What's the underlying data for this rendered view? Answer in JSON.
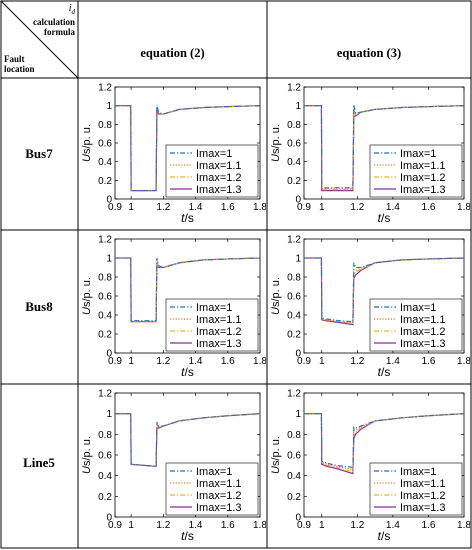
{
  "header": {
    "corner_top_symbol": "i",
    "corner_top_symbol_sub": "d",
    "corner_top_line1": "calculation",
    "corner_top_line2": "formula",
    "corner_bottom_line1": "Fault",
    "corner_bottom_line2": "location",
    "col1": "equation (2)",
    "col2": "equation (3)"
  },
  "rows": [
    "Bus7",
    "Bus8",
    "Line5"
  ],
  "colors": {
    "Imax=1": "#1f6fc0",
    "Imax=1.1": "#e87a1e",
    "Imax=1.2": "#f0b429",
    "Imax=1.3": "#8a2a9e"
  },
  "axis_text": {
    "xlabel_var": "t",
    "xlabel_unit": "/s",
    "ylabel_var": "U",
    "ylabel_unit": "s/p. u."
  },
  "chart_data": [
    {
      "type": "line",
      "row": "Bus7",
      "column": "equation (2)",
      "xlim": [
        0.9,
        1.8
      ],
      "ylim": [
        0,
        1.2
      ],
      "xticks": [
        "0.9",
        "1",
        "1.2",
        "1.4",
        "1.6",
        "1.8"
      ],
      "yticks": [
        "0",
        "0.2",
        "0.4",
        "0.6",
        "0.8",
        "1",
        "1.2"
      ],
      "xlabel": "t/s",
      "ylabel": "Us/p. u.",
      "legend_position": "lower-right",
      "series": [
        {
          "name": "Imax=1",
          "style": "dash-dot",
          "x": [
            0.9,
            0.998,
            1.0,
            1.155,
            1.16,
            1.17,
            1.2,
            1.3,
            1.45,
            1.6,
            1.8
          ],
          "y": [
            1.0,
            1.0,
            0.09,
            0.09,
            1.01,
            0.93,
            0.91,
            0.96,
            0.98,
            0.99,
            1.0
          ]
        },
        {
          "name": "Imax=1.1",
          "style": "dotted",
          "x": [
            0.9,
            0.998,
            1.0,
            1.155,
            1.16,
            1.17,
            1.2,
            1.3,
            1.45,
            1.6,
            1.8
          ],
          "y": [
            1.0,
            1.0,
            0.09,
            0.09,
            0.99,
            0.92,
            0.91,
            0.96,
            0.98,
            0.99,
            1.0
          ]
        },
        {
          "name": "Imax=1.2",
          "style": "dash-dot",
          "x": [
            0.9,
            0.998,
            1.0,
            1.155,
            1.16,
            1.17,
            1.2,
            1.3,
            1.45,
            1.6,
            1.8
          ],
          "y": [
            1.0,
            1.0,
            0.09,
            0.09,
            0.97,
            0.92,
            0.91,
            0.96,
            0.98,
            0.99,
            1.0
          ]
        },
        {
          "name": "Imax=1.3",
          "style": "solid",
          "x": [
            0.9,
            0.998,
            1.0,
            1.155,
            1.16,
            1.17,
            1.2,
            1.3,
            1.45,
            1.6,
            1.8
          ],
          "y": [
            1.0,
            1.0,
            0.09,
            0.09,
            0.95,
            0.91,
            0.91,
            0.96,
            0.98,
            0.99,
            1.0
          ]
        }
      ]
    },
    {
      "type": "line",
      "row": "Bus7",
      "column": "equation (3)",
      "xlim": [
        0.9,
        1.8
      ],
      "ylim": [
        0,
        1.2
      ],
      "xticks": [
        "0.9",
        "1",
        "1.2",
        "1.4",
        "1.6",
        "1.8"
      ],
      "yticks": [
        "0",
        "0.2",
        "0.4",
        "0.6",
        "0.8",
        "1",
        "1.2"
      ],
      "xlabel": "t/s",
      "ylabel": "Us/p. u.",
      "legend_position": "lower-right",
      "series": [
        {
          "name": "Imax=1",
          "style": "dash-dot",
          "x": [
            0.9,
            0.998,
            1.0,
            1.175,
            1.18,
            1.19,
            1.22,
            1.3,
            1.45,
            1.6,
            1.8
          ],
          "y": [
            1.0,
            1.0,
            0.12,
            0.12,
            1.01,
            0.92,
            0.93,
            0.96,
            0.98,
            0.99,
            1.0
          ]
        },
        {
          "name": "Imax=1.1",
          "style": "dotted",
          "x": [
            0.9,
            0.998,
            1.0,
            1.175,
            1.18,
            1.19,
            1.22,
            1.3,
            1.45,
            1.6,
            1.8
          ],
          "y": [
            1.0,
            1.0,
            0.11,
            0.11,
            0.96,
            0.91,
            0.93,
            0.96,
            0.98,
            0.99,
            1.0
          ]
        },
        {
          "name": "Imax=1.2",
          "style": "dash-dot",
          "x": [
            0.9,
            0.998,
            1.0,
            1.175,
            1.18,
            1.19,
            1.22,
            1.3,
            1.45,
            1.6,
            1.8
          ],
          "y": [
            1.0,
            1.0,
            0.1,
            0.1,
            0.93,
            0.9,
            0.93,
            0.96,
            0.98,
            0.99,
            1.0
          ]
        },
        {
          "name": "Imax=1.3",
          "style": "solid",
          "x": [
            0.9,
            0.998,
            1.0,
            1.175,
            1.18,
            1.19,
            1.22,
            1.3,
            1.45,
            1.6,
            1.8
          ],
          "y": [
            1.0,
            1.0,
            0.09,
            0.09,
            0.88,
            0.89,
            0.93,
            0.96,
            0.98,
            0.99,
            1.0
          ]
        }
      ]
    },
    {
      "type": "line",
      "row": "Bus8",
      "column": "equation (2)",
      "xlim": [
        0.9,
        1.8
      ],
      "ylim": [
        0,
        1.2
      ],
      "xticks": [
        "0.9",
        "1",
        "1.2",
        "1.4",
        "1.6",
        "1.8"
      ],
      "yticks": [
        "0",
        "0.2",
        "0.4",
        "0.6",
        "0.8",
        "1",
        "1.2"
      ],
      "xlabel": "t/s",
      "ylabel": "Us/p. u.",
      "legend_position": "lower-right",
      "series": [
        {
          "name": "Imax=1",
          "style": "dash-dot",
          "x": [
            0.9,
            0.998,
            1.0,
            1.155,
            1.16,
            1.17,
            1.2,
            1.3,
            1.45,
            1.6,
            1.8
          ],
          "y": [
            1.0,
            1.0,
            0.34,
            0.34,
            1.0,
            0.92,
            0.9,
            0.95,
            0.98,
            0.99,
            1.0
          ]
        },
        {
          "name": "Imax=1.1",
          "style": "dotted",
          "x": [
            0.9,
            0.998,
            1.0,
            1.155,
            1.16,
            1.17,
            1.2,
            1.3,
            1.45,
            1.6,
            1.8
          ],
          "y": [
            1.0,
            1.0,
            0.33,
            0.33,
            0.97,
            0.91,
            0.9,
            0.95,
            0.98,
            0.99,
            1.0
          ]
        },
        {
          "name": "Imax=1.2",
          "style": "dash-dot",
          "x": [
            0.9,
            0.998,
            1.0,
            1.155,
            1.16,
            1.17,
            1.2,
            1.3,
            1.45,
            1.6,
            1.8
          ],
          "y": [
            1.0,
            1.0,
            0.33,
            0.33,
            0.95,
            0.9,
            0.9,
            0.95,
            0.98,
            0.99,
            1.0
          ]
        },
        {
          "name": "Imax=1.3",
          "style": "solid",
          "x": [
            0.9,
            0.998,
            1.0,
            1.155,
            1.16,
            1.17,
            1.2,
            1.3,
            1.45,
            1.6,
            1.8
          ],
          "y": [
            1.0,
            1.0,
            0.33,
            0.33,
            0.93,
            0.9,
            0.9,
            0.95,
            0.98,
            0.99,
            1.0
          ]
        }
      ]
    },
    {
      "type": "line",
      "row": "Bus8",
      "column": "equation (3)",
      "xlim": [
        0.9,
        1.8
      ],
      "ylim": [
        0,
        1.2
      ],
      "xticks": [
        "0.9",
        "1",
        "1.2",
        "1.4",
        "1.6",
        "1.8"
      ],
      "yticks": [
        "0",
        "0.2",
        "0.4",
        "0.6",
        "0.8",
        "1",
        "1.2"
      ],
      "xlabel": "t/s",
      "ylabel": "Us/p. u.",
      "legend_position": "lower-right",
      "series": [
        {
          "name": "Imax=1",
          "style": "dash-dot",
          "x": [
            0.9,
            0.998,
            1.0,
            1.02,
            1.1,
            1.175,
            1.18,
            1.19,
            1.22,
            1.3,
            1.45,
            1.6,
            1.8
          ],
          "y": [
            1.0,
            1.0,
            0.37,
            0.36,
            0.34,
            0.33,
            0.95,
            0.9,
            0.9,
            0.95,
            0.98,
            0.99,
            1.0
          ]
        },
        {
          "name": "Imax=1.1",
          "style": "dotted",
          "x": [
            0.9,
            0.998,
            1.0,
            1.02,
            1.1,
            1.175,
            1.18,
            1.19,
            1.22,
            1.3,
            1.45,
            1.6,
            1.8
          ],
          "y": [
            1.0,
            1.0,
            0.36,
            0.35,
            0.33,
            0.32,
            0.88,
            0.87,
            0.89,
            0.95,
            0.98,
            0.99,
            1.0
          ]
        },
        {
          "name": "Imax=1.2",
          "style": "dash-dot",
          "x": [
            0.9,
            0.998,
            1.0,
            1.02,
            1.1,
            1.175,
            1.18,
            1.19,
            1.22,
            1.3,
            1.45,
            1.6,
            1.8
          ],
          "y": [
            1.0,
            1.0,
            0.36,
            0.35,
            0.33,
            0.31,
            0.83,
            0.85,
            0.88,
            0.95,
            0.98,
            0.99,
            1.0
          ]
        },
        {
          "name": "Imax=1.3",
          "style": "solid",
          "x": [
            0.9,
            0.998,
            1.0,
            1.02,
            1.1,
            1.175,
            1.18,
            1.19,
            1.22,
            1.3,
            1.45,
            1.6,
            1.8
          ],
          "y": [
            1.0,
            1.0,
            0.35,
            0.34,
            0.32,
            0.3,
            0.78,
            0.82,
            0.87,
            0.95,
            0.98,
            0.99,
            1.0
          ]
        }
      ]
    },
    {
      "type": "line",
      "row": "Line5",
      "column": "equation (2)",
      "xlim": [
        0.9,
        1.8
      ],
      "ylim": [
        0,
        1.2
      ],
      "xticks": [
        "0.9",
        "1",
        "1.2",
        "1.4",
        "1.6",
        "1.8"
      ],
      "yticks": [
        "0",
        "0.2",
        "0.4",
        "0.6",
        "0.8",
        "1",
        "1.2"
      ],
      "xlabel": "t/s",
      "ylabel": "Us/p. u.",
      "legend_position": "lower-right",
      "series": [
        {
          "name": "Imax=1",
          "style": "dash-dot",
          "x": [
            0.9,
            0.998,
            1.0,
            1.155,
            1.16,
            1.17,
            1.2,
            1.3,
            1.45,
            1.6,
            1.8
          ],
          "y": [
            1.0,
            1.0,
            0.51,
            0.49,
            0.92,
            0.88,
            0.88,
            0.93,
            0.96,
            0.98,
            1.0
          ]
        },
        {
          "name": "Imax=1.1",
          "style": "dotted",
          "x": [
            0.9,
            0.998,
            1.0,
            1.155,
            1.16,
            1.17,
            1.2,
            1.3,
            1.45,
            1.6,
            1.8
          ],
          "y": [
            1.0,
            1.0,
            0.51,
            0.49,
            0.9,
            0.87,
            0.88,
            0.93,
            0.96,
            0.98,
            1.0
          ]
        },
        {
          "name": "Imax=1.2",
          "style": "dash-dot",
          "x": [
            0.9,
            0.998,
            1.0,
            1.155,
            1.16,
            1.17,
            1.2,
            1.3,
            1.45,
            1.6,
            1.8
          ],
          "y": [
            1.0,
            1.0,
            0.51,
            0.49,
            0.88,
            0.87,
            0.88,
            0.93,
            0.96,
            0.98,
            1.0
          ]
        },
        {
          "name": "Imax=1.3",
          "style": "solid",
          "x": [
            0.9,
            0.998,
            1.0,
            1.155,
            1.16,
            1.17,
            1.2,
            1.3,
            1.45,
            1.6,
            1.8
          ],
          "y": [
            1.0,
            1.0,
            0.51,
            0.49,
            0.86,
            0.86,
            0.88,
            0.93,
            0.96,
            0.98,
            1.0
          ]
        }
      ]
    },
    {
      "type": "line",
      "row": "Line5",
      "column": "equation (3)",
      "xlim": [
        0.9,
        1.8
      ],
      "ylim": [
        0,
        1.2
      ],
      "xticks": [
        "0.9",
        "1",
        "1.2",
        "1.4",
        "1.6",
        "1.8"
      ],
      "yticks": [
        "0",
        "0.2",
        "0.4",
        "0.6",
        "0.8",
        "1",
        "1.2"
      ],
      "xlabel": "t/s",
      "ylabel": "Us/p. u.",
      "legend_position": "lower-right",
      "series": [
        {
          "name": "Imax=1",
          "style": "dash-dot",
          "x": [
            0.9,
            0.998,
            1.0,
            1.03,
            1.08,
            1.175,
            1.18,
            1.19,
            1.22,
            1.3,
            1.45,
            1.6,
            1.8
          ],
          "y": [
            1.0,
            1.0,
            0.54,
            0.52,
            0.5,
            0.48,
            0.87,
            0.86,
            0.88,
            0.93,
            0.96,
            0.98,
            1.0
          ]
        },
        {
          "name": "Imax=1.1",
          "style": "dotted",
          "x": [
            0.9,
            0.998,
            1.0,
            1.03,
            1.08,
            1.175,
            1.18,
            1.19,
            1.22,
            1.3,
            1.45,
            1.6,
            1.8
          ],
          "y": [
            1.0,
            1.0,
            0.53,
            0.51,
            0.49,
            0.46,
            0.84,
            0.84,
            0.87,
            0.93,
            0.96,
            0.98,
            1.0
          ]
        },
        {
          "name": "Imax=1.2",
          "style": "dash-dot",
          "x": [
            0.9,
            0.998,
            1.0,
            1.03,
            1.08,
            1.175,
            1.18,
            1.19,
            1.22,
            1.3,
            1.45,
            1.6,
            1.8
          ],
          "y": [
            1.0,
            1.0,
            0.52,
            0.5,
            0.48,
            0.44,
            0.8,
            0.82,
            0.86,
            0.93,
            0.96,
            0.98,
            1.0
          ]
        },
        {
          "name": "Imax=1.3",
          "style": "solid",
          "x": [
            0.9,
            0.998,
            1.0,
            1.03,
            1.08,
            1.175,
            1.18,
            1.19,
            1.22,
            1.3,
            1.45,
            1.6,
            1.8
          ],
          "y": [
            1.0,
            1.0,
            0.51,
            0.49,
            0.47,
            0.42,
            0.76,
            0.8,
            0.85,
            0.93,
            0.96,
            0.98,
            1.0
          ]
        }
      ]
    }
  ]
}
